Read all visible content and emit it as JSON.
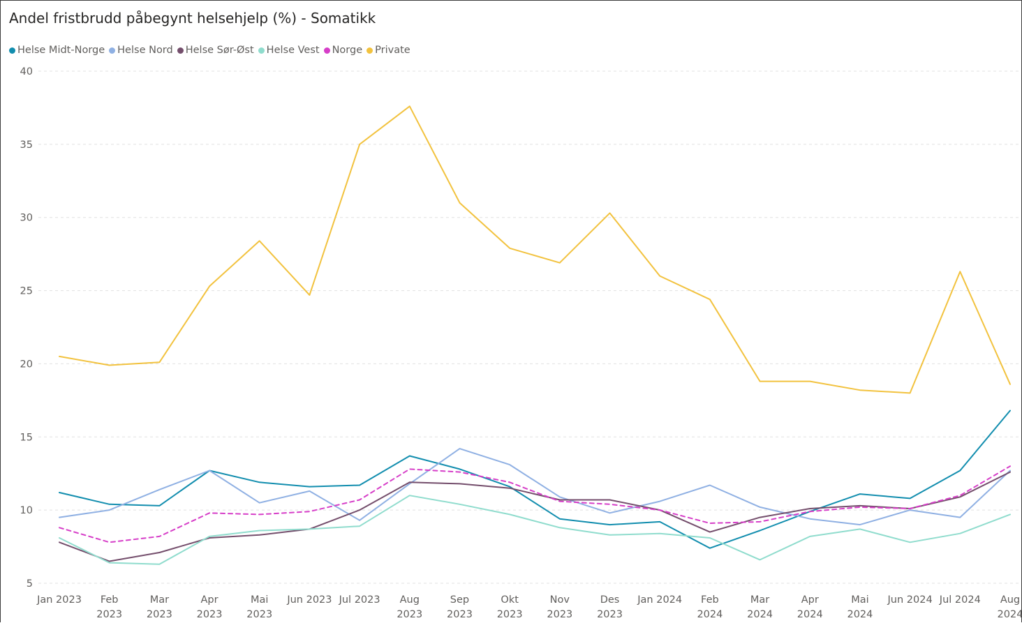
{
  "chart_data": {
    "type": "line",
    "title": "Andel fristbrudd påbegynt helsehjelp (%) - Somatikk",
    "xlabel": "",
    "ylabel": "",
    "ylim": [
      5,
      40
    ],
    "yticks": [
      5,
      10,
      15,
      20,
      25,
      30,
      35,
      40
    ],
    "grid": true,
    "legend_position": "top-left",
    "categories": [
      [
        "Jan 2023"
      ],
      [
        "Feb",
        "2023"
      ],
      [
        "Mar",
        "2023"
      ],
      [
        "Apr",
        "2023"
      ],
      [
        "Mai",
        "2023"
      ],
      [
        "Jun 2023"
      ],
      [
        "Jul 2023"
      ],
      [
        "Aug",
        "2023"
      ],
      [
        "Sep",
        "2023"
      ],
      [
        "Okt",
        "2023"
      ],
      [
        "Nov",
        "2023"
      ],
      [
        "Des",
        "2023"
      ],
      [
        "Jan 2024"
      ],
      [
        "Feb",
        "2024"
      ],
      [
        "Mar",
        "2024"
      ],
      [
        "Apr",
        "2024"
      ],
      [
        "Mai",
        "2024"
      ],
      [
        "Jun 2024"
      ],
      [
        "Jul 2024"
      ],
      [
        "Aug",
        "2024"
      ]
    ],
    "series": [
      {
        "name": "Helse Midt-Norge",
        "color": "#118dae",
        "dashed": false,
        "values": [
          11.2,
          10.4,
          10.3,
          12.7,
          11.9,
          11.6,
          11.7,
          13.7,
          12.8,
          11.6,
          9.4,
          9.0,
          9.2,
          7.4,
          8.6,
          9.9,
          11.1,
          10.8,
          12.7,
          16.8
        ]
      },
      {
        "name": "Helse Nord",
        "color": "#8fb0e3",
        "dashed": false,
        "values": [
          9.5,
          10.0,
          11.4,
          12.7,
          10.5,
          11.3,
          9.3,
          11.8,
          14.2,
          13.1,
          10.9,
          9.8,
          10.6,
          11.7,
          10.2,
          9.4,
          9.0,
          10.0,
          9.5,
          12.7
        ]
      },
      {
        "name": "Helse Sør-Øst",
        "color": "#744e6c",
        "dashed": false,
        "values": [
          7.8,
          6.5,
          7.1,
          8.1,
          8.3,
          8.7,
          10.0,
          11.9,
          11.8,
          11.5,
          10.7,
          10.7,
          10.0,
          8.5,
          9.5,
          10.1,
          10.3,
          10.1,
          10.9,
          12.6
        ]
      },
      {
        "name": "Helse Vest",
        "color": "#8fdccd",
        "dashed": false,
        "values": [
          8.1,
          6.4,
          6.3,
          8.2,
          8.6,
          8.7,
          8.9,
          11.0,
          10.4,
          9.7,
          8.8,
          8.3,
          8.4,
          8.1,
          6.6,
          8.2,
          8.7,
          7.8,
          8.4,
          9.7
        ]
      },
      {
        "name": "Norge",
        "color": "#d63ec8",
        "dashed": true,
        "values": [
          8.8,
          7.8,
          8.2,
          9.8,
          9.7,
          9.9,
          10.7,
          12.8,
          12.6,
          11.9,
          10.6,
          10.4,
          10.0,
          9.1,
          9.2,
          9.9,
          10.2,
          10.1,
          11.0,
          13.0
        ]
      },
      {
        "name": "Private",
        "color": "#f2c23e",
        "dashed": false,
        "values": [
          20.5,
          19.9,
          20.1,
          25.3,
          28.4,
          24.7,
          35.0,
          37.6,
          31.0,
          27.9,
          26.9,
          30.3,
          26.0,
          24.4,
          18.8,
          18.8,
          18.2,
          18.0,
          26.3,
          18.6
        ]
      }
    ]
  }
}
